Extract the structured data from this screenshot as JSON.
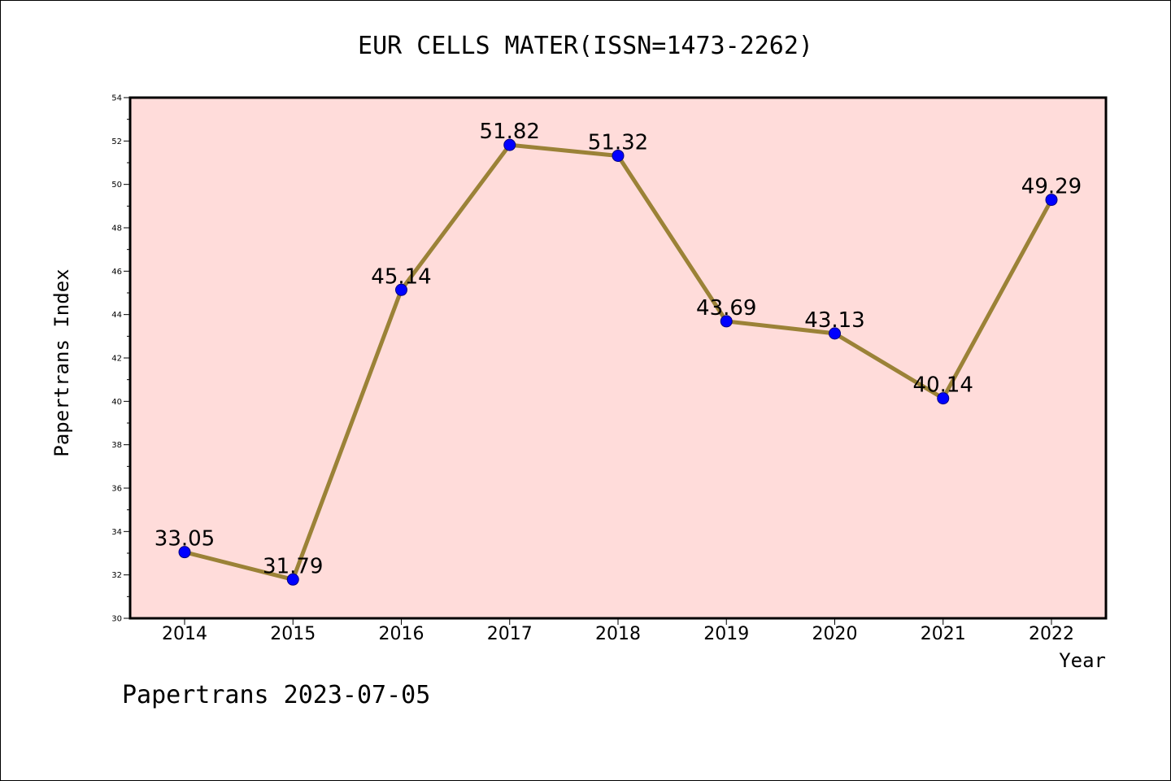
{
  "chart_data": {
    "type": "line",
    "title": "EUR CELLS MATER(ISSN=1473-2262)",
    "xlabel": "Year",
    "ylabel": "Papertrans Index",
    "categories": [
      "2014",
      "2015",
      "2016",
      "2017",
      "2018",
      "2019",
      "2020",
      "2021",
      "2022"
    ],
    "values": [
      33.05,
      31.79,
      45.14,
      51.82,
      51.32,
      43.69,
      43.13,
      40.14,
      49.29
    ],
    "data_labels": [
      "33.05",
      "31.79",
      "45.14",
      "51.82",
      "51.32",
      "43.69",
      "43.13",
      "40.14",
      "49.29"
    ],
    "ylim": [
      30,
      54
    ],
    "yticks": [
      30,
      32,
      34,
      36,
      38,
      40,
      42,
      44,
      46,
      48,
      50,
      52,
      54
    ],
    "grid": false,
    "legend": "none",
    "colors": {
      "plot_background": "#ffdcda",
      "line": "#9b8237",
      "marker": "#0000ff",
      "marker_edge": "#000080"
    }
  },
  "footer": {
    "text": "Papertrans 2023-07-05"
  }
}
